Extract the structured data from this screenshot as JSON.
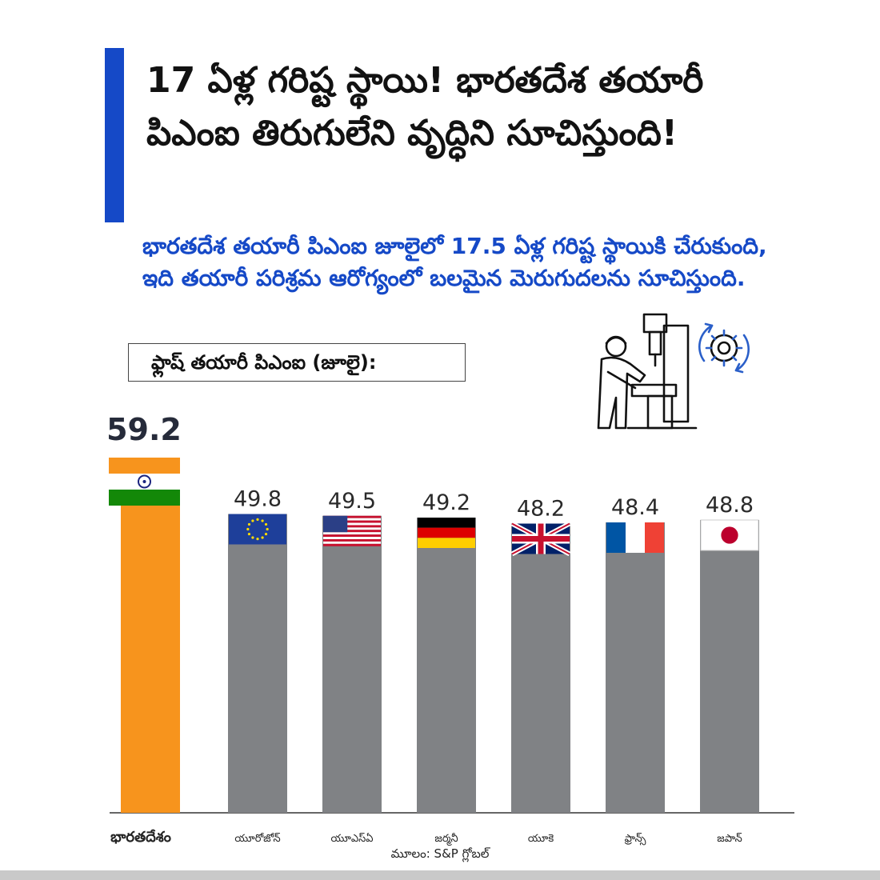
{
  "header": {
    "title": "17 ఏళ్ల గరిష్ట స్థాయి! భారతదేశ తయారీ పిఎంఐ తిరుగులేని వృద్ధిని సూచిస్తుంది!",
    "subtitle": "భారతదేశ తయారీ పిఎంఐ జూలైలో 17.5 ఏళ్ల గరిష్ట స్థాయికి చేరుకుంది, ఇది తయారీ పరిశ్రమ ఆరోగ్యంలో బలమైన మెరుగుదలను సూచిస్తుంది."
  },
  "colors": {
    "accent": "#1549c7",
    "india_bar": "#f7941d",
    "other_bar": "#808285"
  },
  "icons": {
    "worker": "factory-worker-machine-gear-icon"
  },
  "chart_data": {
    "type": "bar",
    "title": "ఫ్లాష్ తయారీ పిఎంఐ (జూలై):",
    "categories": [
      "భారతదేశం",
      "యూరోజోన్",
      "యూఎస్ఏ",
      "జర్మనీ",
      "యూకె",
      "ఫ్రాన్స్",
      "జపాన్"
    ],
    "values": [
      59.2,
      49.8,
      49.5,
      49.2,
      48.2,
      48.4,
      48.8
    ],
    "value_labels": [
      "59.2",
      "49.8",
      "49.5",
      "49.2",
      "48.2",
      "48.4",
      "48.8"
    ],
    "flags": [
      "india",
      "eu",
      "usa",
      "germany",
      "uk",
      "france",
      "japan"
    ],
    "ylim": [
      0,
      60
    ],
    "grid": false,
    "source": "మూలం: S&P గ్లోబల్"
  }
}
